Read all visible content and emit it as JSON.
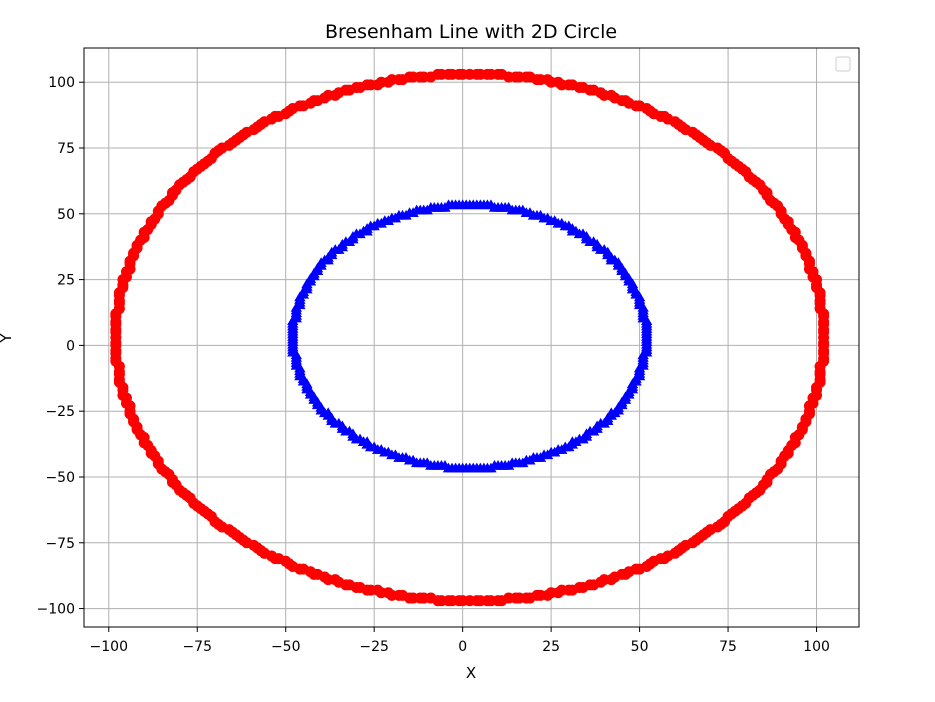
{
  "chart_data": {
    "type": "scatter",
    "title": "Bresenham Line with 2D Circle",
    "xlabel": "X",
    "ylabel": "Y",
    "xlim": [
      -107,
      112
    ],
    "ylim": [
      -107,
      113
    ],
    "xticks": [
      -100,
      -75,
      -50,
      -25,
      0,
      25,
      50,
      75,
      100
    ],
    "xtick_labels": [
      "−100",
      "−75",
      "−50",
      "−25",
      "0",
      "25",
      "50",
      "75",
      "100"
    ],
    "yticks": [
      -100,
      -75,
      -50,
      -25,
      0,
      25,
      50,
      75,
      100
    ],
    "ytick_labels": [
      "−100",
      "−75",
      "−50",
      "−25",
      "0",
      "25",
      "50",
      "75",
      "100"
    ],
    "grid": true,
    "legend": {
      "placement": "top-right",
      "entries": []
    },
    "series": [
      {
        "marker": "circle",
        "color": "#ff0000",
        "shape": "circle",
        "center": [
          2,
          3
        ],
        "radius": 100,
        "point_count": 400
      },
      {
        "marker": "tri-marker",
        "color": "#0000ff",
        "shape": "circle",
        "center": [
          2,
          3
        ],
        "radius": 50,
        "point_count": 300
      }
    ]
  }
}
